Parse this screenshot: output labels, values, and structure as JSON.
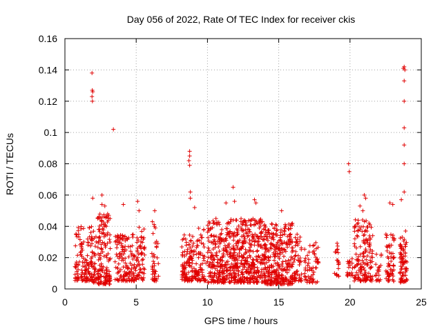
{
  "chart_data": {
    "type": "scatter",
    "title": "Day 056 of 2022, Rate Of TEC Index for receiver ckis",
    "xlabel": "GPS time / hours",
    "ylabel": "ROTI / TECUs",
    "xlim": [
      0,
      25
    ],
    "ylim": [
      0,
      0.16
    ],
    "xticks": [
      0,
      5,
      10,
      15,
      20,
      25
    ],
    "xtick_labels": [
      "0",
      "5",
      "10",
      "15",
      "20",
      "25"
    ],
    "yticks": [
      0,
      0.02,
      0.04,
      0.06,
      0.08,
      0.1,
      0.12,
      0.14,
      0.16
    ],
    "ytick_labels": [
      "0",
      "0.02",
      "0.04",
      "0.06",
      "0.08",
      "0.1",
      "0.12",
      "0.14",
      "0.16"
    ],
    "grid": true,
    "marker": "plus",
    "color": "#e00000",
    "clusters": [
      {
        "x0": 0.7,
        "x1": 1.9,
        "n": 120,
        "ymin": 0.005,
        "ymax": 0.04
      },
      {
        "x0": 1.8,
        "x1": 2.2,
        "n": 40,
        "ymin": 0.004,
        "ymax": 0.045
      },
      {
        "x0": 2.3,
        "x1": 3.2,
        "n": 150,
        "ymin": 0.003,
        "ymax": 0.05
      },
      {
        "x0": 3.5,
        "x1": 5.0,
        "n": 140,
        "ymin": 0.005,
        "ymax": 0.035
      },
      {
        "x0": 5.0,
        "x1": 5.6,
        "n": 60,
        "ymin": 0.005,
        "ymax": 0.04
      },
      {
        "x0": 6.1,
        "x1": 6.6,
        "n": 40,
        "ymin": 0.005,
        "ymax": 0.045
      },
      {
        "x0": 8.2,
        "x1": 9.0,
        "n": 100,
        "ymin": 0.005,
        "ymax": 0.035
      },
      {
        "x0": 9.0,
        "x1": 9.9,
        "n": 80,
        "ymin": 0.005,
        "ymax": 0.04
      },
      {
        "x0": 10.0,
        "x1": 12.0,
        "n": 300,
        "ymin": 0.004,
        "ymax": 0.045
      },
      {
        "x0": 12.0,
        "x1": 14.0,
        "n": 320,
        "ymin": 0.004,
        "ymax": 0.045
      },
      {
        "x0": 14.0,
        "x1": 16.0,
        "n": 320,
        "ymin": 0.003,
        "ymax": 0.042
      },
      {
        "x0": 16.0,
        "x1": 16.6,
        "n": 50,
        "ymin": 0.005,
        "ymax": 0.035
      },
      {
        "x0": 16.8,
        "x1": 17.8,
        "n": 60,
        "ymin": 0.004,
        "ymax": 0.03
      },
      {
        "x0": 18.9,
        "x1": 19.3,
        "n": 20,
        "ymin": 0.008,
        "ymax": 0.03
      },
      {
        "x0": 19.8,
        "x1": 20.2,
        "n": 20,
        "ymin": 0.008,
        "ymax": 0.02
      },
      {
        "x0": 20.3,
        "x1": 21.6,
        "n": 150,
        "ymin": 0.005,
        "ymax": 0.045
      },
      {
        "x0": 21.8,
        "x1": 22.2,
        "n": 20,
        "ymin": 0.005,
        "ymax": 0.025
      },
      {
        "x0": 22.5,
        "x1": 23.1,
        "n": 60,
        "ymin": 0.005,
        "ymax": 0.04
      },
      {
        "x0": 23.5,
        "x1": 24.0,
        "n": 80,
        "ymin": 0.004,
        "ymax": 0.035
      }
    ],
    "outliers": [
      [
        1.9,
        0.138
      ],
      [
        1.92,
        0.127
      ],
      [
        1.95,
        0.126
      ],
      [
        1.9,
        0.123
      ],
      [
        1.93,
        0.12
      ],
      [
        1.95,
        0.058
      ],
      [
        2.6,
        0.06
      ],
      [
        2.6,
        0.054
      ],
      [
        2.8,
        0.053
      ],
      [
        3.4,
        0.102
      ],
      [
        4.1,
        0.054
      ],
      [
        5.1,
        0.056
      ],
      [
        5.2,
        0.05
      ],
      [
        6.3,
        0.05
      ],
      [
        8.75,
        0.088
      ],
      [
        8.75,
        0.085
      ],
      [
        8.7,
        0.082
      ],
      [
        8.75,
        0.079
      ],
      [
        8.8,
        0.062
      ],
      [
        8.8,
        0.058
      ],
      [
        9.1,
        0.052
      ],
      [
        11.3,
        0.055
      ],
      [
        11.8,
        0.065
      ],
      [
        11.9,
        0.056
      ],
      [
        13.3,
        0.057
      ],
      [
        13.4,
        0.055
      ],
      [
        15.2,
        0.05
      ],
      [
        19.9,
        0.08
      ],
      [
        19.95,
        0.075
      ],
      [
        21.0,
        0.06
      ],
      [
        21.1,
        0.058
      ],
      [
        20.7,
        0.053
      ],
      [
        20.9,
        0.05
      ],
      [
        22.8,
        0.055
      ],
      [
        23.0,
        0.054
      ],
      [
        23.6,
        0.057
      ],
      [
        23.8,
        0.142
      ],
      [
        23.75,
        0.141
      ],
      [
        23.85,
        0.14
      ],
      [
        23.8,
        0.133
      ],
      [
        23.8,
        0.12
      ],
      [
        23.8,
        0.103
      ],
      [
        23.8,
        0.092
      ],
      [
        23.8,
        0.08
      ],
      [
        23.8,
        0.062
      ],
      [
        23.9,
        0.037
      ]
    ]
  }
}
